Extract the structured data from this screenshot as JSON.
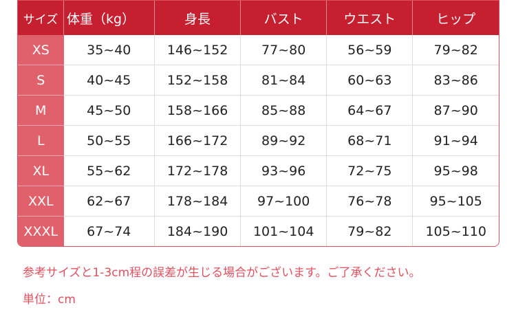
{
  "table": {
    "headers": [
      "サイズ",
      "体重（kg）",
      "身長",
      "バスト",
      "ウエスト",
      "ヒップ"
    ],
    "rows": [
      [
        "XS",
        "35~40",
        "146~152",
        "77~80",
        "56~59",
        "79~82"
      ],
      [
        "S",
        "40~45",
        "152~158",
        "81~84",
        "60~63",
        "83~86"
      ],
      [
        "M",
        "45~50",
        "158~166",
        "85~88",
        "64~67",
        "87~90"
      ],
      [
        "L",
        "50~55",
        "166~172",
        "89~92",
        "68~71",
        "91~94"
      ],
      [
        "XL",
        "55~62",
        "172~178",
        "93~96",
        "72~75",
        "95~98"
      ],
      [
        "XXL",
        "62~67",
        "178~184",
        "97~100",
        "76~78",
        "95~105"
      ],
      [
        "XXXL",
        "67~74",
        "184~190",
        "101~104",
        "79~82",
        "105~110"
      ]
    ]
  },
  "note": "参考サイズと1-3cm程の誤差が生じる場合がございます。ご了承ください。",
  "unit": "単位：cm",
  "colors": {
    "header": "#c61f2f",
    "size_column": "#e0616c",
    "note_text": "#e0505e"
  }
}
